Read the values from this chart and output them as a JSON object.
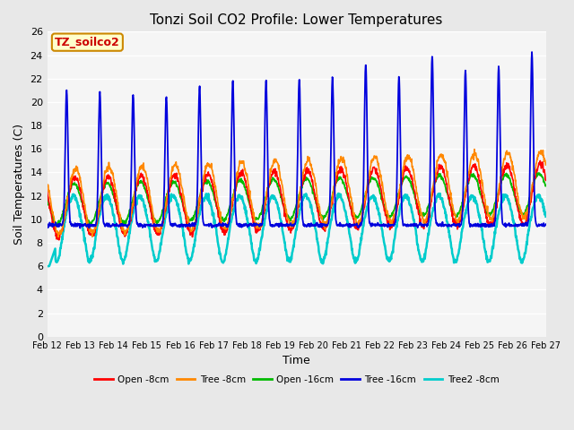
{
  "title": "Tonzi Soil CO2 Profile: Lower Temperatures",
  "xlabel": "Time",
  "ylabel": "Soil Temperatures (C)",
  "ylim": [
    0,
    26
  ],
  "yticks": [
    0,
    2,
    4,
    6,
    8,
    10,
    12,
    14,
    16,
    18,
    20,
    22,
    24,
    26
  ],
  "x_labels": [
    "Feb 12",
    "Feb 13",
    "Feb 14",
    "Feb 15",
    "Feb 16",
    "Feb 17",
    "Feb 18",
    "Feb 19",
    "Feb 20",
    "Feb 21",
    "Feb 22",
    "Feb 23",
    "Feb 24",
    "Feb 25",
    "Feb 26",
    "Feb 27"
  ],
  "bg_color": "#e8e8e8",
  "plot_bg_color": "#f5f5f5",
  "series": [
    {
      "label": "Open -8cm",
      "color": "#ff0000"
    },
    {
      "label": "Tree -8cm",
      "color": "#ff8800"
    },
    {
      "label": "Open -16cm",
      "color": "#00bb00"
    },
    {
      "label": "Tree -16cm",
      "color": "#0000dd"
    },
    {
      "label": "Tree2 -8cm",
      "color": "#00cccc"
    }
  ],
  "annotation_text": "TZ_soilco2",
  "annotation_bg": "#ffffcc",
  "annotation_border": "#cc8800",
  "days": 15,
  "points_per_day": 96
}
